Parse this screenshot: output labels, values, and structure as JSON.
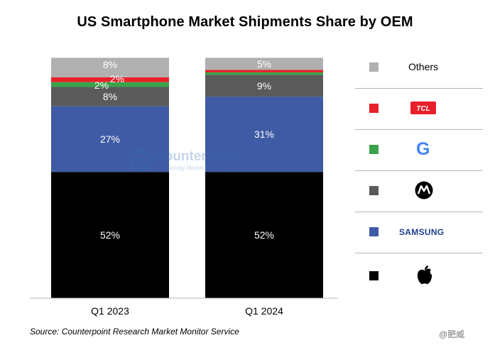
{
  "title": "US Smartphone Market Shipments Share by OEM",
  "source": "Source: Counterpoint Research Market Monitor Service",
  "watermark": {
    "name": "Counterpoint",
    "subtitle": "Technology Market Research"
  },
  "credit": "@肥威",
  "colors": {
    "Apple": "#000000",
    "Samsung": "#3f5ba5",
    "Motorola": "#5a5a5a",
    "Google": "#3aa24b",
    "TCL": "#e8202a",
    "Others": "#b0b0b0"
  },
  "legend": [
    {
      "series": "Others",
      "text": "Others",
      "icon": "others-text"
    },
    {
      "series": "TCL",
      "text": "TCL",
      "icon": "tcl-logo"
    },
    {
      "series": "Google",
      "text": "G",
      "icon": "google-logo"
    },
    {
      "series": "Motorola",
      "text": "",
      "icon": "motorola-logo"
    },
    {
      "series": "Samsung",
      "text": "SAMSUNG",
      "icon": "samsung-logo"
    },
    {
      "series": "Apple",
      "text": "",
      "icon": "apple-logo"
    }
  ],
  "chart_data": {
    "type": "bar",
    "stacked": true,
    "categories": [
      "Q1 2023",
      "Q1 2024"
    ],
    "series": [
      {
        "name": "Apple",
        "values": [
          52,
          52
        ],
        "labels": [
          "52%",
          "52%"
        ]
      },
      {
        "name": "Samsung",
        "values": [
          27,
          31
        ],
        "labels": [
          "27%",
          "31%"
        ]
      },
      {
        "name": "Motorola",
        "values": [
          8,
          9
        ],
        "labels": [
          "8%",
          "9%"
        ]
      },
      {
        "name": "Google",
        "values": [
          2,
          1
        ],
        "labels": [
          "2%",
          ""
        ]
      },
      {
        "name": "TCL",
        "values": [
          2,
          1
        ],
        "labels": [
          "2%",
          ""
        ]
      },
      {
        "name": "Others",
        "values": [
          8,
          5
        ],
        "labels": [
          "8%",
          "5%"
        ]
      }
    ],
    "ylim": [
      0,
      100
    ],
    "grid": false,
    "legend_position": "right"
  }
}
